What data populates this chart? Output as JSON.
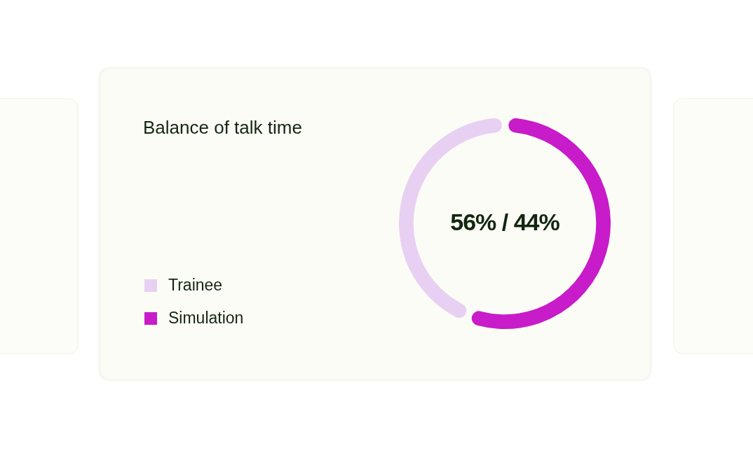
{
  "chart_data": {
    "type": "donut",
    "title": "Balance of talk time",
    "categories": [
      "Trainee",
      "Simulation"
    ],
    "values": [
      44,
      56
    ],
    "colors": [
      "#e8d0f2",
      "#c81bc9"
    ],
    "legend": "left",
    "annotations": [
      "56% / 44%"
    ]
  }
}
